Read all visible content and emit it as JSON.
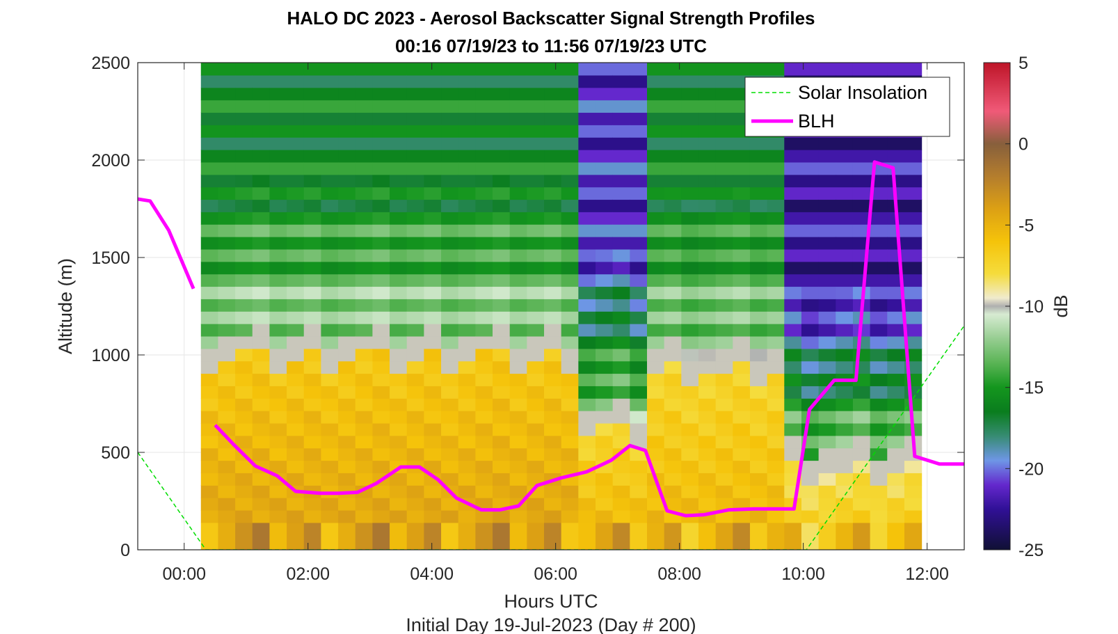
{
  "chart_data": {
    "type": "heatmap",
    "title": "HALO DC 2023 - Aerosol Backscatter Signal Strength Profiles",
    "subtitle": "00:16 07/19/23 to 11:56 07/19/23  UTC",
    "xlabel": "Hours UTC",
    "footer": "Initial Day 19-Jul-2023 (Day # 200)",
    "ylabel": "Altitude (m)",
    "colorbar_label": "dB",
    "xlim": [
      -0.75,
      12.6
    ],
    "ylim": [
      0,
      2500
    ],
    "x_ticks": [
      {
        "value": 0,
        "label": "00:00"
      },
      {
        "value": 2,
        "label": "02:00"
      },
      {
        "value": 4,
        "label": "04:00"
      },
      {
        "value": 6,
        "label": "06:00"
      },
      {
        "value": 8,
        "label": "08:00"
      },
      {
        "value": 10,
        "label": "10:00"
      },
      {
        "value": 12,
        "label": "12:00"
      }
    ],
    "y_ticks": [
      {
        "value": 0,
        "label": "0"
      },
      {
        "value": 500,
        "label": "500"
      },
      {
        "value": 1000,
        "label": "1000"
      },
      {
        "value": 1500,
        "label": "1500"
      },
      {
        "value": 2000,
        "label": "2000"
      },
      {
        "value": 2500,
        "label": "2500"
      }
    ],
    "colorbar_range": [
      -25,
      5
    ],
    "colorbar_ticks": [
      {
        "value": 5,
        "label": "5"
      },
      {
        "value": 0,
        "label": "0"
      },
      {
        "value": -5,
        "label": "-5"
      },
      {
        "value": -10,
        "label": "-10"
      },
      {
        "value": -15,
        "label": "-15"
      },
      {
        "value": -20,
        "label": "-20"
      },
      {
        "value": -25,
        "label": "-25"
      }
    ],
    "grid": true,
    "legend_position": "top-right",
    "heatmap": {
      "x_start": 0.27,
      "x_end": 11.91,
      "columns": 42,
      "y_start": 140,
      "y_end": 2500,
      "rows": 37,
      "surface_row_top": 140,
      "units": "dB",
      "profiles": [
        {
          "x_from": 0.27,
          "x_to": 6.3,
          "low_layer_top": 980,
          "low_value": -4,
          "high_value": -16
        },
        {
          "x_from": 6.3,
          "x_to": 7.4,
          "low_layer_top": 600,
          "low_value": -5,
          "high_value": -21
        },
        {
          "x_from": 7.4,
          "x_to": 9.8,
          "low_layer_top": 900,
          "low_value": -5,
          "high_value": -16
        },
        {
          "x_from": 9.8,
          "x_to": 11.91,
          "low_layer_top": 400,
          "low_value": -6,
          "high_value": -22
        }
      ]
    },
    "series": [
      {
        "name": "Solar Insolation",
        "color": "#00dd00",
        "style": "dashed",
        "segments": [
          {
            "x": [
              -0.75,
              0.35,
              10.05,
              12.6
            ],
            "y": [
              500,
              0,
              0,
              1150
            ]
          }
        ]
      },
      {
        "name": "BLH",
        "color": "#ff00ff",
        "style": "solid",
        "segments": [
          {
            "x": [
              -0.75,
              -0.55,
              -0.25,
              0.15
            ],
            "y": [
              1800,
              1790,
              1640,
              1340
            ]
          },
          {
            "x": [
              0.5,
              0.8,
              1.15,
              1.5,
              1.8,
              2.2,
              2.5,
              2.8,
              3.1,
              3.5,
              3.8,
              4.1,
              4.4,
              4.8,
              5.1,
              5.4,
              5.7,
              6.1,
              6.5,
              6.9,
              7.2,
              7.45,
              7.8,
              8.1,
              8.4,
              8.8,
              9.2,
              9.6,
              9.85,
              10.1,
              10.5,
              10.85,
              11.15,
              11.45,
              11.8,
              12.2,
              12.6
            ],
            "y": [
              640,
              540,
              430,
              380,
              300,
              290,
              290,
              295,
              340,
              425,
              425,
              360,
              265,
              205,
              205,
              225,
              330,
              370,
              400,
              460,
              535,
              510,
              200,
              175,
              180,
              205,
              210,
              210,
              210,
              720,
              870,
              870,
              1990,
              1960,
              480,
              440,
              440
            ]
          }
        ]
      }
    ]
  }
}
